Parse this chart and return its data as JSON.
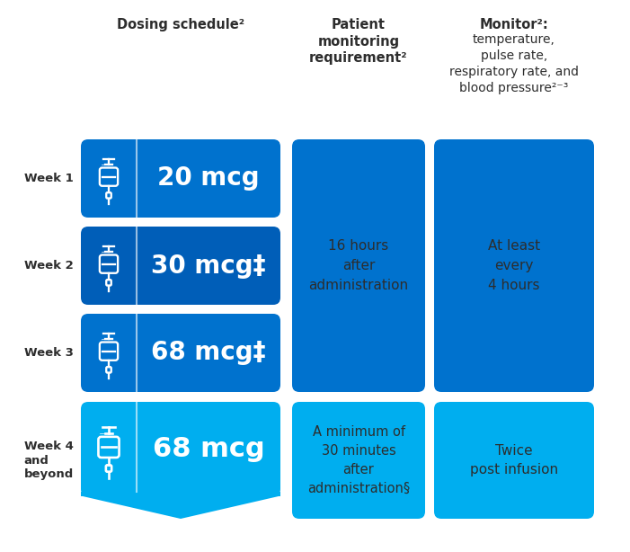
{
  "bg_color": "#FFFFFF",
  "dark_blue": "#005EB8",
  "medium_blue": "#0072CE",
  "light_blue": "#00AEEF",
  "dark_text": "#2d2d2d",
  "white": "#FFFFFF",
  "row_labels": [
    "Week 1",
    "Week 2",
    "Week 3",
    "Week 4\nand\nbeyond"
  ],
  "doses": [
    "20 mcg",
    "30 mcg‡",
    "68 mcg‡",
    "68 mcg"
  ],
  "header1": "Dosing schedule²",
  "header2": "Patient\nmonitoring\nrequirement²",
  "header3_line1": "Monitor²:",
  "header3_rest": "temperature,\npulse rate,\nrespiratory rate, and\nblood pressure²⁻³",
  "monitoring_rows_1_3": "16 hours\nafter\nadministration",
  "monitoring_row_4": "A minimum of\n30 minutes\nafter\nadministration§",
  "vitals_rows_1_3": "At least\nevery\n4 hours",
  "vitals_row_4": "Twice\npost infusion",
  "row1_color": "#0072CE",
  "row2_color": "#005EB8",
  "row3_color": "#0072CE",
  "row4_color": "#00AEEF",
  "mon_col_color": "#0072CE",
  "mon_col4_color": "#00AEEF",
  "vit_col_color": "#0072CE",
  "vit_col4_color": "#00AEEF"
}
